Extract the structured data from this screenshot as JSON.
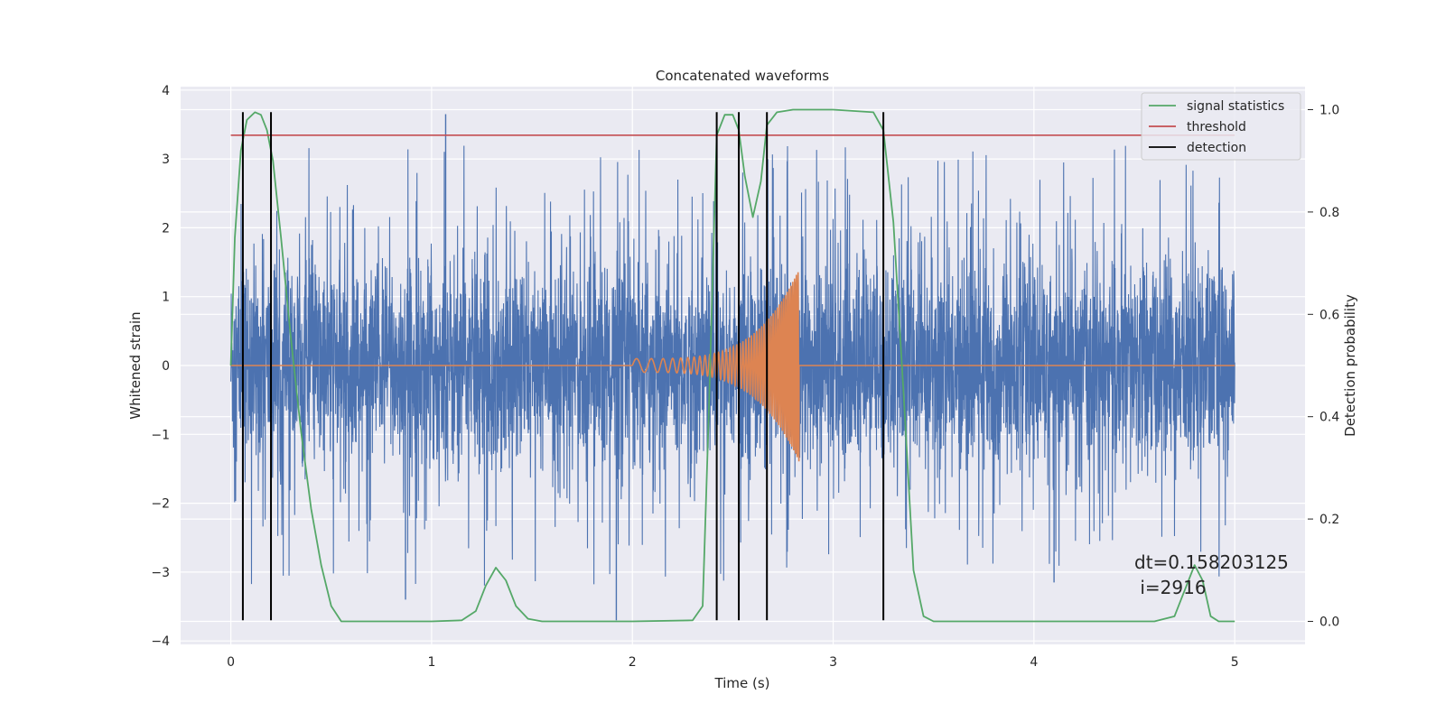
{
  "chart_data": {
    "type": "line",
    "title": "Concatenated waveforms",
    "xlabel": "Time (s)",
    "ylabel": "Whitened strain",
    "y2label": "Detection probability",
    "xlim": [
      -0.25,
      5.35
    ],
    "ylim": [
      -4.05,
      4.05
    ],
    "y2lim": [
      -0.045,
      1.045
    ],
    "xticks": [
      0,
      1,
      2,
      3,
      4,
      5
    ],
    "xtick_labels": [
      "0",
      "1",
      "2",
      "3",
      "4",
      "5"
    ],
    "yticks": [
      -4,
      -3,
      -2,
      -1,
      0,
      1,
      2,
      3,
      4
    ],
    "ytick_labels": [
      "−4",
      "−3",
      "−2",
      "−1",
      "0",
      "1",
      "2",
      "3",
      "4"
    ],
    "y2ticks": [
      0.0,
      0.2,
      0.4,
      0.6,
      0.8,
      1.0
    ],
    "y2tick_labels": [
      "0.0",
      "0.2",
      "0.4",
      "0.6",
      "0.8",
      "1.0"
    ],
    "grid": true,
    "legend_position": "top-right",
    "colors": {
      "strain": "#4c72b0",
      "signal": "#dd8452",
      "statistics": "#55a868",
      "threshold": "#c44e52",
      "detection": "#000000",
      "background": "#eaeaf2",
      "grid": "#ffffff"
    },
    "strain": {
      "t_start": 0,
      "t_end": 5,
      "typical_amplitude": 0.75,
      "peak_positive": 3.65,
      "peak_negative": -3.7,
      "notable_peaks": [
        {
          "t": 1.07,
          "y": 3.65
        },
        {
          "t": 1.92,
          "y": -3.7
        },
        {
          "t": 0.87,
          "y": -3.4
        },
        {
          "t": 4.1,
          "y": -3.15
        }
      ]
    },
    "signal": {
      "t_start": 2.0,
      "t_end": 2.83,
      "amplitude_start": 0.1,
      "amplitude_peak": 1.4,
      "freq_start": 12,
      "freq_end": 80
    },
    "series": [
      {
        "name": "signal statistics",
        "axis": "right",
        "x": [
          0.0,
          0.02,
          0.05,
          0.08,
          0.12,
          0.15,
          0.18,
          0.21,
          0.25,
          0.3,
          0.35,
          0.4,
          0.45,
          0.5,
          0.55,
          0.6,
          1.0,
          1.15,
          1.22,
          1.27,
          1.32,
          1.37,
          1.42,
          1.48,
          1.55,
          2.0,
          2.3,
          2.35,
          2.38,
          2.42,
          2.46,
          2.5,
          2.53,
          2.56,
          2.6,
          2.64,
          2.67,
          2.72,
          2.8,
          3.0,
          3.2,
          3.25,
          3.3,
          3.35,
          3.4,
          3.45,
          3.5,
          4.0,
          4.6,
          4.7,
          4.76,
          4.8,
          4.84,
          4.88,
          4.92,
          5.0
        ],
        "y": [
          0.5,
          0.75,
          0.92,
          0.98,
          0.995,
          0.99,
          0.96,
          0.9,
          0.75,
          0.55,
          0.37,
          0.22,
          0.11,
          0.03,
          0.0,
          0.0,
          0.0,
          0.002,
          0.02,
          0.07,
          0.105,
          0.08,
          0.03,
          0.005,
          0.0,
          0.0,
          0.002,
          0.03,
          0.4,
          0.95,
          0.99,
          0.99,
          0.96,
          0.87,
          0.79,
          0.86,
          0.97,
          0.995,
          1.0,
          1.0,
          0.995,
          0.96,
          0.78,
          0.45,
          0.1,
          0.01,
          0.0,
          0.0,
          0.0,
          0.01,
          0.07,
          0.11,
          0.08,
          0.01,
          0.0,
          0.0
        ]
      },
      {
        "name": "threshold",
        "axis": "right",
        "x": [
          0,
          5
        ],
        "y": [
          0.95,
          0.95
        ]
      },
      {
        "name": "detection",
        "axis": "left",
        "x": [
          0.06,
          0.2,
          2.42,
          2.53,
          2.67,
          3.25
        ],
        "y_range": [
          -3.7,
          3.68
        ]
      }
    ],
    "legend": [
      "signal statistics",
      "threshold",
      "detection"
    ],
    "annotation": {
      "line1": "dt=0.158203125",
      "line2": " i=2916",
      "x": 4.52,
      "y": -2.98
    }
  }
}
